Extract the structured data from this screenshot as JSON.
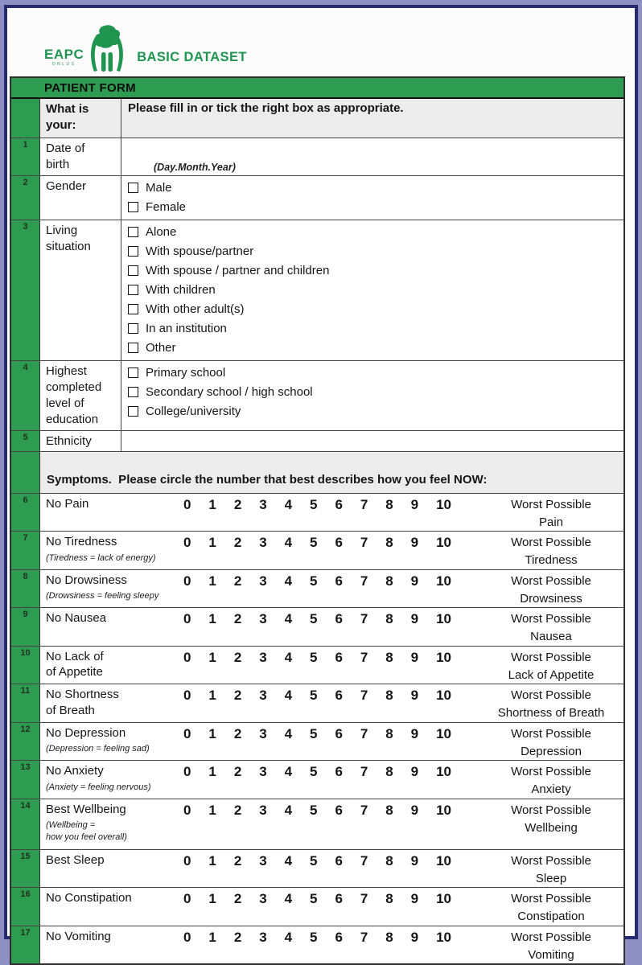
{
  "logo": {
    "acronym": "EAPC",
    "acronym_sub": "ONLUS",
    "dataset_title": "BASIC DATASET"
  },
  "form": {
    "title": "PATIENT FORM"
  },
  "demographics": {
    "question_label": "What is\nyour:",
    "instruction": "Please fill in or tick the right box as appropriate.",
    "rows": [
      {
        "num": "1",
        "label": "Date of\nbirth",
        "hint": "(Day.Month.Year)"
      },
      {
        "num": "2",
        "label": "Gender",
        "options": [
          "Male",
          "Female"
        ]
      },
      {
        "num": "3",
        "label": "Living\nsituation",
        "options": [
          "Alone",
          "With spouse/partner",
          "With spouse / partner and children",
          "With children",
          "With other adult(s)",
          "In an institution",
          "Other"
        ]
      },
      {
        "num": "4",
        "label": "Highest\ncompleted\nlevel of\neducation",
        "options": [
          "Primary school",
          "Secondary school / high school",
          "College/university"
        ]
      },
      {
        "num": "5",
        "label": "Ethnicity"
      }
    ]
  },
  "symptoms": {
    "section_header": "Symptoms.  Please circle the number that best describes how you feel NOW:",
    "scale": [
      "0",
      "1",
      "2",
      "3",
      "4",
      "5",
      "6",
      "7",
      "8",
      "9",
      "10"
    ],
    "rows": [
      {
        "num": "6",
        "label": "No Pain",
        "sub": "",
        "right": "Worst Possible\nPain"
      },
      {
        "num": "7",
        "label": "No Tiredness",
        "sub": "(Tiredness = lack of energy)",
        "right": "Worst Possible\nTiredness"
      },
      {
        "num": "8",
        "label": "No Drowsiness",
        "sub": "(Drowsiness = feeling sleepy",
        "right": "Worst Possible\nDrowsiness"
      },
      {
        "num": "9",
        "label": "No Nausea",
        "sub": "",
        "right": "Worst Possible\nNausea"
      },
      {
        "num": "10",
        "label": "No Lack of\nof Appetite",
        "sub": "",
        "right": "Worst Possible\nLack of Appetite"
      },
      {
        "num": "11",
        "label": "No Shortness\nof Breath",
        "sub": "",
        "right": "Worst Possible\nShortness of Breath"
      },
      {
        "num": "12",
        "label": "No Depression",
        "sub": "(Depression = feeling sad)",
        "right": "Worst Possible\nDepression"
      },
      {
        "num": "13",
        "label": "No Anxiety",
        "sub": "(Anxiety = feeling nervous)",
        "right": "Worst Possible\nAnxiety"
      },
      {
        "num": "14",
        "label": "Best Wellbeing",
        "sub": "(Wellbeing =\nhow you feel overall)",
        "right": "Worst Possible\nWellbeing"
      },
      {
        "num": "15",
        "label": "Best Sleep",
        "sub": "",
        "right": "Worst Possible\nSleep"
      },
      {
        "num": "16",
        "label": "No Constipation",
        "sub": "",
        "right": "Worst Possible\nConstipation"
      },
      {
        "num": "17",
        "label": "No Vomiting",
        "sub": "",
        "right": "Worst Possible\nVomiting"
      }
    ]
  },
  "colors": {
    "green": "#2D9C51",
    "logo_green": "#1F9550",
    "navy_border": "#242B6E",
    "lavender_border": "#8E90C4",
    "header_gray": "#ECECEC"
  }
}
